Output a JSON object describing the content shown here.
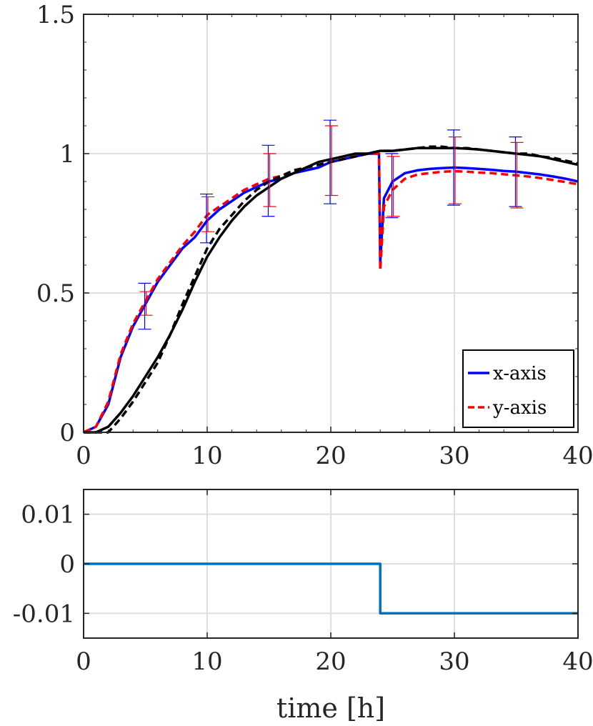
{
  "chart_data": [
    {
      "type": "line",
      "title": "",
      "xlabel": "",
      "ylabel": "",
      "xlim": [
        0,
        40
      ],
      "ylim": [
        0,
        1.5
      ],
      "xticks": [
        0,
        10,
        20,
        30,
        40
      ],
      "xtick_labels": [
        "0",
        "10",
        "20",
        "30",
        "40"
      ],
      "yticks": [
        0,
        0.5,
        1,
        1.5
      ],
      "ytick_labels": [
        "0",
        "0.5",
        "1",
        "1.5"
      ],
      "grid": true,
      "legend": {
        "placement": "bottom-right",
        "entries": [
          "x-axis",
          "y-axis"
        ]
      },
      "series": [
        {
          "name": "x-axis",
          "color": "#0000ff",
          "style": "solid",
          "x": [
            0,
            1,
            2,
            3,
            4,
            5,
            6,
            7,
            8,
            9,
            10,
            11,
            12,
            13,
            14,
            15,
            16,
            17,
            18,
            19,
            20,
            21,
            22,
            23,
            23.9,
            24,
            24.3,
            25,
            26,
            27,
            28,
            29,
            30,
            31,
            32,
            33,
            34,
            35,
            36,
            37,
            38,
            39,
            40
          ],
          "y": [
            0,
            0.02,
            0.1,
            0.27,
            0.38,
            0.46,
            0.54,
            0.6,
            0.66,
            0.7,
            0.76,
            0.8,
            0.83,
            0.86,
            0.88,
            0.9,
            0.91,
            0.93,
            0.94,
            0.95,
            0.97,
            0.98,
            0.99,
            1.0,
            1.0,
            0.61,
            0.84,
            0.9,
            0.93,
            0.94,
            0.945,
            0.948,
            0.95,
            0.948,
            0.945,
            0.942,
            0.938,
            0.935,
            0.93,
            0.925,
            0.918,
            0.91,
            0.9
          ]
        },
        {
          "name": "y-axis",
          "color": "#ff0000",
          "style": "dashed",
          "x": [
            0,
            1,
            2,
            3,
            4,
            5,
            6,
            7,
            8,
            9,
            10,
            11,
            12,
            13,
            14,
            15,
            16,
            17,
            18,
            19,
            20,
            21,
            22,
            23,
            23.9,
            24,
            24.3,
            25,
            26,
            27,
            28,
            29,
            30,
            31,
            32,
            33,
            34,
            35,
            36,
            37,
            38,
            39,
            40
          ],
          "y": [
            0,
            0.02,
            0.11,
            0.28,
            0.39,
            0.47,
            0.55,
            0.61,
            0.67,
            0.72,
            0.78,
            0.81,
            0.84,
            0.87,
            0.89,
            0.91,
            0.92,
            0.94,
            0.95,
            0.96,
            0.97,
            0.98,
            0.99,
            1.0,
            1.0,
            0.58,
            0.81,
            0.87,
            0.91,
            0.925,
            0.93,
            0.935,
            0.937,
            0.935,
            0.932,
            0.93,
            0.926,
            0.922,
            0.918,
            0.912,
            0.905,
            0.898,
            0.89
          ]
        },
        {
          "color": "#000000",
          "style": "solid",
          "x": [
            0,
            1,
            2,
            3,
            4,
            5,
            6,
            7,
            8,
            9,
            10,
            11,
            12,
            13,
            14,
            15,
            16,
            17,
            18,
            19,
            20,
            21,
            22,
            23,
            24,
            25,
            26,
            27,
            28,
            29,
            30,
            31,
            32,
            33,
            34,
            35,
            36,
            37,
            38,
            39,
            40
          ],
          "y": [
            0,
            0,
            0.02,
            0.07,
            0.13,
            0.2,
            0.27,
            0.35,
            0.44,
            0.54,
            0.63,
            0.7,
            0.76,
            0.81,
            0.85,
            0.88,
            0.91,
            0.93,
            0.95,
            0.97,
            0.98,
            0.99,
            1.0,
            1.0,
            1.01,
            1.01,
            1.015,
            1.02,
            1.02,
            1.02,
            1.02,
            1.018,
            1.015,
            1.01,
            1.005,
            1.0,
            0.995,
            0.99,
            0.98,
            0.97,
            0.96
          ]
        },
        {
          "color": "#000000",
          "style": "dashed",
          "x": [
            0,
            1,
            2,
            3,
            4,
            5,
            6,
            7,
            8,
            9,
            10,
            11,
            12,
            13,
            14,
            15,
            16,
            17,
            18,
            19,
            20,
            21,
            22,
            23,
            24,
            25,
            26,
            27,
            28,
            29,
            30,
            31,
            32,
            33,
            34,
            35,
            36,
            37,
            38,
            39,
            40
          ],
          "y": [
            0,
            0,
            0,
            0.05,
            0.11,
            0.18,
            0.25,
            0.35,
            0.46,
            0.56,
            0.66,
            0.73,
            0.78,
            0.83,
            0.87,
            0.9,
            0.92,
            0.94,
            0.95,
            0.96,
            0.97,
            0.98,
            0.99,
            1.0,
            1.01,
            1.01,
            1.015,
            1.02,
            1.025,
            1.025,
            1.02,
            1.02,
            1.015,
            1.01,
            1.005,
            1.0,
            1.0,
            0.99,
            0.985,
            0.975,
            0.965
          ]
        }
      ],
      "error_bars": [
        {
          "color": "#0000ff",
          "x": [
            5,
            10,
            15,
            20,
            25,
            30,
            35
          ],
          "y": [
            0.45,
            0.77,
            0.9,
            0.97,
            0.9,
            0.95,
            0.935
          ],
          "lower": [
            0.37,
            0.68,
            0.775,
            0.82,
            0.77,
            0.815,
            0.81
          ],
          "upper": [
            0.535,
            0.855,
            1.03,
            1.12,
            1.0,
            1.085,
            1.06
          ]
        },
        {
          "color": "#ff0000",
          "x": [
            5,
            10,
            15,
            20,
            25,
            30,
            35
          ],
          "y": [
            0.46,
            0.78,
            0.91,
            0.97,
            0.88,
            0.94,
            0.925
          ],
          "lower": [
            0.42,
            0.72,
            0.81,
            0.85,
            0.775,
            0.82,
            0.805
          ],
          "upper": [
            0.505,
            0.845,
            1.0,
            1.1,
            0.99,
            1.06,
            1.04
          ]
        }
      ]
    },
    {
      "type": "line",
      "title": "",
      "xlabel": "time [h]",
      "ylabel": "",
      "xlim": [
        0,
        40
      ],
      "ylim": [
        -0.015,
        0.015
      ],
      "xticks": [
        0,
        10,
        20,
        30,
        40
      ],
      "xtick_labels": [
        "0",
        "10",
        "20",
        "30",
        "40"
      ],
      "yticks": [
        0.01,
        0,
        -0.01
      ],
      "ytick_labels": [
        "0.01",
        "0",
        "-0.01"
      ],
      "grid": true,
      "series": [
        {
          "color": "#0072bd",
          "style": "solid",
          "step": true,
          "x": [
            0,
            24,
            24,
            40
          ],
          "y": [
            0,
            0,
            -0.01,
            -0.01
          ]
        }
      ]
    }
  ]
}
